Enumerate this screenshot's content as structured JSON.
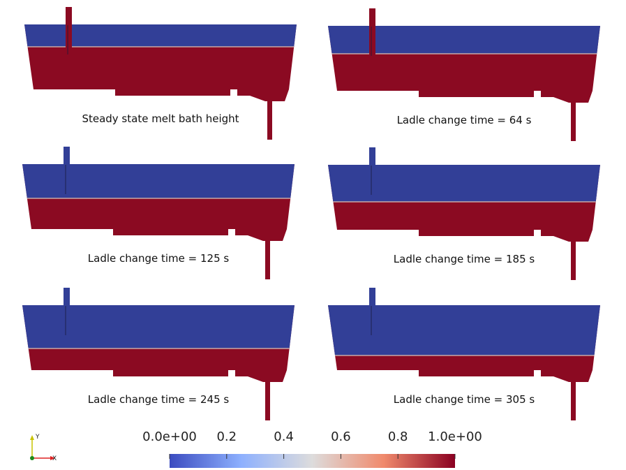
{
  "panels": [
    {
      "caption": "Steady state melt bath height"
    },
    {
      "caption": "Ladle change time = 64 s"
    },
    {
      "caption": "Ladle change time = 125 s"
    },
    {
      "caption": "Ladle change time = 185 s"
    },
    {
      "caption": "Ladle change time = 245 s"
    },
    {
      "caption": "Ladle change time = 305 s"
    }
  ],
  "colorbar": {
    "range": [
      0,
      1
    ],
    "ticks": [
      {
        "value": 0,
        "label": "0.0e+00"
      },
      0.2,
      0.4,
      0.6,
      0.8,
      {
        "value": 1,
        "label": "1.0e+00"
      }
    ]
  },
  "axes_triad": {
    "y": "Y",
    "x": "X"
  }
}
